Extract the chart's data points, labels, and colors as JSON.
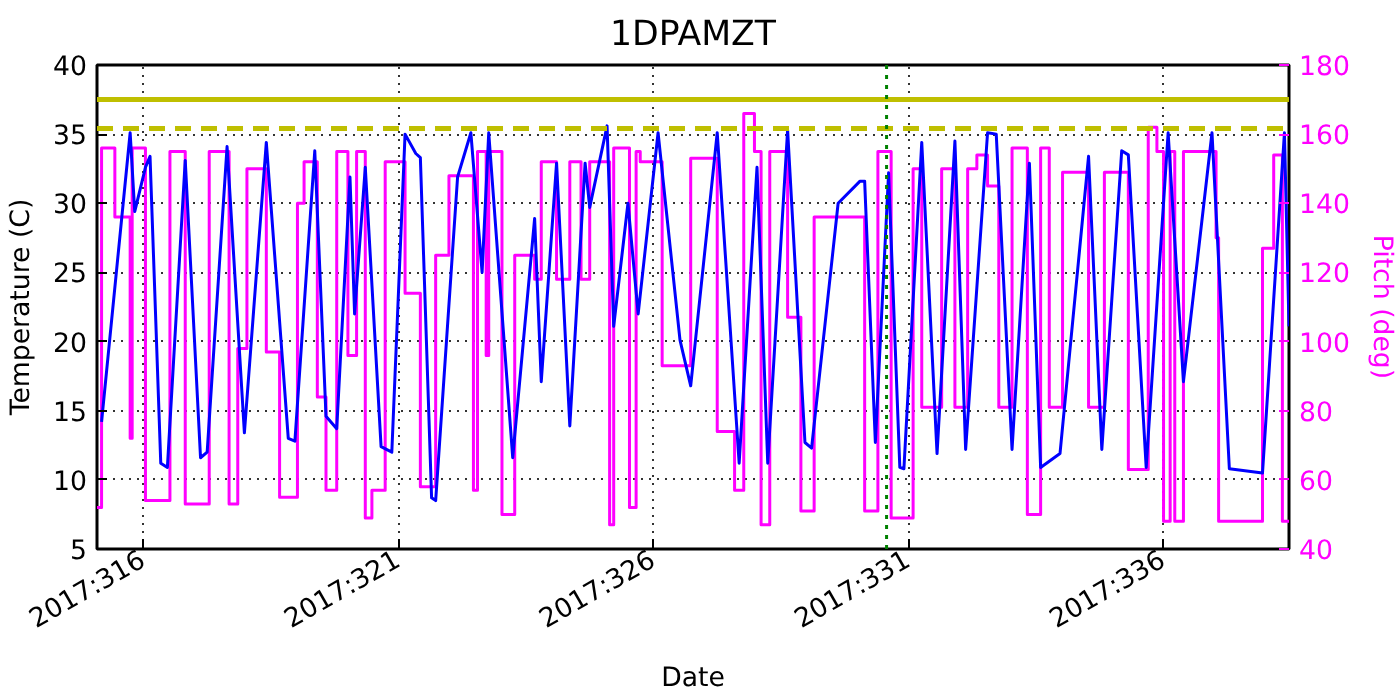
{
  "chart_data": {
    "type": "line",
    "title": "1DPAMZT",
    "xlabel": "Date",
    "ylabel": "Temperature (C)",
    "y2label": "Pitch (deg)",
    "xlim": [
      "2017-11-11T02:10",
      "2017-12-04T11:02"
    ],
    "xticks": [
      {
        "value": "2017-11-12",
        "label": "2017:316"
      },
      {
        "value": "2017-11-17",
        "label": "2017:321"
      },
      {
        "value": "2017-11-22",
        "label": "2017:326"
      },
      {
        "value": "2017-11-27",
        "label": "2017:331"
      },
      {
        "value": "2017-12-02",
        "label": "2017:336"
      }
    ],
    "ylim": [
      5,
      40
    ],
    "yticks": [
      5,
      10,
      15,
      20,
      25,
      30,
      35,
      40
    ],
    "y2lim": [
      40,
      180
    ],
    "y2ticks": [
      40,
      60,
      80,
      100,
      120,
      140,
      160,
      180
    ],
    "grid": true,
    "series": [
      {
        "color": "#0000ff",
        "x": [
          "2017-11-11T04:19",
          "2017-11-11T17:46",
          "2017-11-11T19:55",
          "2017-11-12T00:58",
          "2017-11-12T03:07",
          "2017-11-12T08:10",
          "2017-11-12T11:17",
          "2017-11-12T19:41",
          "2017-11-13T02:53",
          "2017-11-13T06:00",
          "2017-11-13T15:22",
          "2017-11-13T23:31",
          "2017-11-14T09:50",
          "2017-11-14T20:10",
          "2017-11-14T23:17",
          "2017-11-15T08:38",
          "2017-11-15T13:55",
          "2017-11-15T18:58",
          "2017-11-16T01:12",
          "2017-11-16T03:22",
          "2017-11-16T08:24",
          "2017-11-16T15:50",
          "2017-11-16T20:53",
          "2017-11-17T03:07",
          "2017-11-17T08:10",
          "2017-11-17T10:19",
          "2017-11-17T15:36",
          "2017-11-17T17:31",
          "2017-11-18T03:50",
          "2017-11-18T10:05",
          "2017-11-18T15:22",
          "2017-11-18T18:29",
          "2017-11-19T05:46",
          "2017-11-19T16:05",
          "2017-11-19T19:12",
          "2017-11-20T02:24",
          "2017-11-20T08:38",
          "2017-11-20T15:50",
          "2017-11-20T18:00",
          "2017-11-21T02:10",
          "2017-11-21T05:17",
          "2017-11-21T12:00",
          "2017-11-21T16:48",
          "2017-11-22T02:10",
          "2017-11-22T12:29",
          "2017-11-22T17:31",
          "2017-11-23T06:00",
          "2017-11-23T16:19",
          "2017-11-24T00:43",
          "2017-11-24T05:46",
          "2017-11-24T15:07",
          "2017-11-24T23:17",
          "2017-11-25T02:24",
          "2017-11-25T14:53",
          "2017-11-26T01:12",
          "2017-11-26T03:22",
          "2017-11-26T08:24",
          "2017-11-26T14:38",
          "2017-11-26T19:55",
          "2017-11-26T21:50",
          "2017-11-27T06:14",
          "2017-11-27T13:26",
          "2017-11-27T21:50",
          "2017-11-28T02:53",
          "2017-11-28T13:12",
          "2017-11-28T17:17",
          "2017-11-29T00:43",
          "2017-11-29T08:53",
          "2017-11-29T14:10",
          "2017-11-29T23:17",
          "2017-11-30T12:43",
          "2017-11-30T18:58",
          "2017-12-01T04:19",
          "2017-12-01T07:26",
          "2017-12-01T15:50",
          "2017-12-02T02:10",
          "2017-12-02T09:22",
          "2017-12-02T22:48",
          "2017-12-03T06:58",
          "2017-12-03T22:34",
          "2017-12-04T08:53",
          "2017-12-04T11:02"
        ],
        "values": [
          14.2,
          35.1,
          29.4,
          32.6,
          33.4,
          11.2,
          10.9,
          33.1,
          11.6,
          12.0,
          34.1,
          13.4,
          34.4,
          13.0,
          12.8,
          33.8,
          14.6,
          13.7,
          31.9,
          22.0,
          32.6,
          12.4,
          12.0,
          35.0,
          33.6,
          33.3,
          8.7,
          8.5,
          31.9,
          35.1,
          25.0,
          35.1,
          11.6,
          28.9,
          17.1,
          32.9,
          13.9,
          32.9,
          29.7,
          35.6,
          21.1,
          30.0,
          22.0,
          35.1,
          20.1,
          16.8,
          35.1,
          11.2,
          32.6,
          11.2,
          35.3,
          12.7,
          12.3,
          30.0,
          31.6,
          31.6,
          12.7,
          32.2,
          10.9,
          10.8,
          34.4,
          11.9,
          34.5,
          12.2,
          35.1,
          35.0,
          12.2,
          32.9,
          10.9,
          11.9,
          33.4,
          12.2,
          33.8,
          33.5,
          10.9,
          35.1,
          17.1,
          35.1,
          10.8,
          10.5,
          35.1,
          21.1
        ]
      },
      {
        "type": "step",
        "axis": "y2",
        "color": "#ff00ff",
        "x": [
          "2017-11-11T02:10",
          "2017-11-11T04:19",
          "2017-11-11T10:34",
          "2017-11-11T17:46",
          "2017-11-11T18:43",
          "2017-11-12T00:58",
          "2017-11-12T12:29",
          "2017-11-12T19:41",
          "2017-11-13T06:58",
          "2017-11-13T16:19",
          "2017-11-13T20:24",
          "2017-11-14T00:43",
          "2017-11-14T09:50",
          "2017-11-14T16:05",
          "2017-11-15T00:29",
          "2017-11-15T03:36",
          "2017-11-15T09:50",
          "2017-11-15T13:55",
          "2017-11-15T18:58",
          "2017-11-16T00:14",
          "2017-11-16T04:19",
          "2017-11-16T08:24",
          "2017-11-16T11:31",
          "2017-11-16T17:46",
          "2017-11-17T03:07",
          "2017-11-17T10:19",
          "2017-11-17T17:31",
          "2017-11-17T23:46",
          "2017-11-18T11:17",
          "2017-11-18T13:12",
          "2017-11-18T17:17",
          "2017-11-18T18:29",
          "2017-11-19T00:43",
          "2017-11-19T06:43",
          "2017-11-19T16:05",
          "2017-11-19T19:12",
          "2017-11-20T02:24",
          "2017-11-20T08:38",
          "2017-11-20T13:55",
          "2017-11-20T18:00",
          "2017-11-21T03:22",
          "2017-11-21T05:17",
          "2017-11-21T12:43",
          "2017-11-21T15:50",
          "2017-11-21T17:46",
          "2017-11-22T04:05",
          "2017-11-22T17:31",
          "2017-11-23T06:00",
          "2017-11-23T14:10",
          "2017-11-23T18:29",
          "2017-11-23T23:31",
          "2017-11-24T02:38",
          "2017-11-24T06:43",
          "2017-11-24T15:07",
          "2017-11-24T21:22",
          "2017-11-25T03:36",
          "2017-11-26T03:22",
          "2017-11-26T09:36",
          "2017-11-26T15:50",
          "2017-11-27T02:10",
          "2017-11-27T06:14",
          "2017-11-27T15:36",
          "2017-11-27T21:50",
          "2017-11-28T03:50",
          "2017-11-28T08:10",
          "2017-11-28T13:12",
          "2017-11-28T18:29",
          "2017-11-29T00:43",
          "2017-11-29T07:55",
          "2017-11-29T14:10",
          "2017-11-29T18:14",
          "2017-11-30T00:29",
          "2017-11-30T12:43",
          "2017-11-30T20:10",
          "2017-12-01T07:26",
          "2017-12-01T16:48",
          "2017-12-01T20:53",
          "2017-12-02T00:00",
          "2017-12-02T03:07",
          "2017-12-02T05:17",
          "2017-12-02T09:22",
          "2017-12-03T00:43",
          "2017-12-03T01:55",
          "2017-12-03T22:34",
          "2017-12-04T03:50",
          "2017-12-04T07:55",
          "2017-12-04T11:02"
        ],
        "values": [
          52,
          156,
          136,
          72,
          156,
          54,
          155,
          53,
          155,
          53,
          98,
          150,
          97,
          55,
          140,
          152,
          84,
          57,
          155,
          96,
          155,
          49,
          57,
          152,
          114,
          58,
          125,
          148,
          57,
          155,
          96,
          155,
          50,
          125,
          118,
          152,
          118,
          152,
          118,
          152,
          47,
          156,
          52,
          155,
          152,
          93,
          153,
          74,
          57,
          166,
          155,
          47,
          155,
          107,
          51,
          136,
          51,
          155,
          49,
          150,
          81,
          150,
          81,
          150,
          154,
          145,
          81,
          156,
          50,
          156,
          81,
          149,
          81,
          149,
          63,
          162,
          155,
          48,
          155,
          48,
          155,
          130,
          48,
          127,
          154,
          48,
          48
        ]
      }
    ],
    "ref_lines": [
      {
        "axis": "y",
        "value": 37.5,
        "color": "#bfbf00",
        "line_style": "solid"
      },
      {
        "axis": "y",
        "value": 35.4,
        "color": "#bfbf00",
        "line_style": "dashed"
      },
      {
        "axis": "x",
        "value": "2017-11-26T13:41",
        "color": "#008000",
        "line_style": "dotted"
      }
    ]
  }
}
